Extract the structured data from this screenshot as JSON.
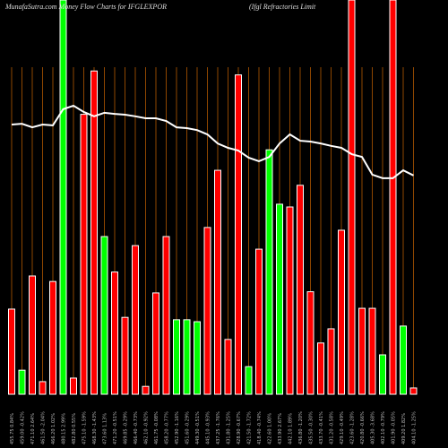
{
  "chart_data": {
    "type": "bar",
    "title": "MunafaSutra.com Money Flow Charts for IFGLEXPOR",
    "subtitle": "(Ifgl Refractories Limit",
    "categories": [
      "455.75 0.84%",
      "459.00 -0.42%",
      "471.10 2.64%",
      "461.50 -2.04%",
      "466.20 1.02%",
      "480.15 2.99%",
      "482.80 0.55%",
      "475.10 -1.59%",
      "468.30 -1.43%",
      "473.60 1.13%",
      "471.20 -0.51%",
      "469.85 -0.29%",
      "466.40 -0.73%",
      "462.10 -0.92%",
      "461.75 -0.08%",
      "458.20 -0.77%",
      "452.90 -1.16%",
      "451.60 -0.29%",
      "449.30 -0.51%",
      "445.10 -0.93%",
      "437.25 -1.76%",
      "431.80 -1.25%",
      "428.90 -0.67%",
      "421.50 -1.72%",
      "418.40 -0.74%",
      "422.60 1.00%",
      "433.90 2.67%",
      "442.10 1.89%",
      "436.80 -1.20%",
      "435.50 -0.30%",
      "433.70 -0.41%",
      "431.20 -0.58%",
      "429.10 -0.49%",
      "423.60 -1.28%",
      "420.80 -0.66%",
      "405.30 -3.68%",
      "402.10 -0.79%",
      "401.90 -0.05%",
      "409.20 1.82%",
      "404.10 -1.25%"
    ],
    "series": [
      {
        "values": [
          21.6,
          6.1,
          30,
          3.2,
          28.6,
          100,
          4.1,
          71,
          82,
          40,
          31,
          19.5,
          37.7,
          2,
          25.7,
          40,
          18.9,
          18.9,
          18.4,
          42.3,
          56.8,
          13.9,
          81,
          7,
          36.8,
          62,
          48.2,
          47.5,
          53,
          26,
          13,
          16.6,
          41.6,
          100,
          21.8,
          21.8,
          10,
          100,
          17.3,
          1.6
        ],
        "colors": [
          "#ff0000",
          "#00ff00",
          "#ff0000",
          "#ff0000",
          "#ff0000",
          "#00ff00",
          "#ff0000",
          "#ff0000",
          "#ff0000",
          "#00ff00",
          "#ff0000",
          "#ff0000",
          "#ff0000",
          "#ff0000",
          "#ff0000",
          "#ff0000",
          "#00ff00",
          "#00ff00",
          "#00ff00",
          "#ff0000",
          "#ff0000",
          "#ff0000",
          "#ff0000",
          "#00ff00",
          "#ff0000",
          "#00ff00",
          "#00ff00",
          "#ff0000",
          "#ff0000",
          "#ff0000",
          "#ff0000",
          "#ff0000",
          "#ff0000",
          "#ff0000",
          "#ff0000",
          "#ff0000",
          "#00ff00",
          "#ff0000",
          "#00ff00",
          "#ff0000"
        ]
      },
      {
        "type": "line",
        "color": "#ffffff",
        "values": [
          68.4,
          68.6,
          67.7,
          68.4,
          68.2,
          72.3,
          73.2,
          71.6,
          70.5,
          71.4,
          71.1,
          70.9,
          70.5,
          70,
          70,
          69.3,
          67.7,
          67.5,
          67,
          65.9,
          63.6,
          62.5,
          61.8,
          60,
          59.1,
          60.2,
          63.6,
          65.9,
          64.3,
          64.1,
          63.6,
          63,
          62.5,
          60.9,
          60.2,
          55.7,
          54.8,
          54.8,
          56.8,
          55.5
        ]
      }
    ],
    "ylim": [
      0,
      100
    ],
    "grid": true,
    "grid_color": "#b35900"
  }
}
